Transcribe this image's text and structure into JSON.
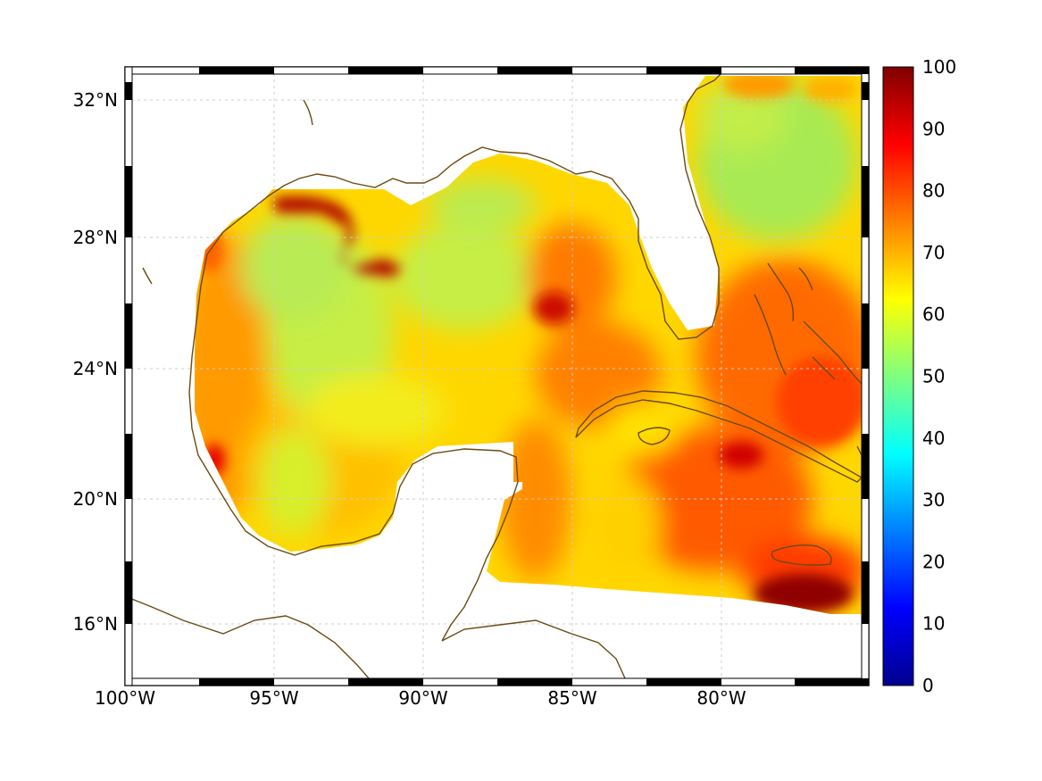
{
  "map": {
    "lon_range": [
      -100,
      -75
    ],
    "lat_range": [
      14.2,
      33
    ],
    "grid": true,
    "projection_frame": "black-and-white checkered border",
    "x_tick_labels": [
      "100°W",
      "95°W",
      "90°W",
      "85°W",
      "80°W"
    ],
    "y_tick_labels": [
      "32°N",
      "28°N",
      "24°N",
      "20°N",
      "16°N"
    ],
    "coastline_color": "#6b4a10",
    "land_color": "#ffffff"
  },
  "colorbar": {
    "colormap": "jet",
    "range": [
      0,
      100
    ],
    "tick_labels": [
      "100",
      "90",
      "80",
      "70",
      "60",
      "50",
      "40",
      "30",
      "20",
      "10",
      "0"
    ],
    "stops": [
      "#00008f",
      "#0000ff",
      "#00ffff",
      "#ffff00",
      "#ff0000",
      "#800000"
    ]
  },
  "field": {
    "description_colors": {
      "high": "#a00000",
      "orange_red": "#ff5a00",
      "orange": "#ff9a00",
      "yellow": "#ffe100",
      "yellow_green": "#d8ef2a",
      "green": "#a8ea52"
    }
  }
}
